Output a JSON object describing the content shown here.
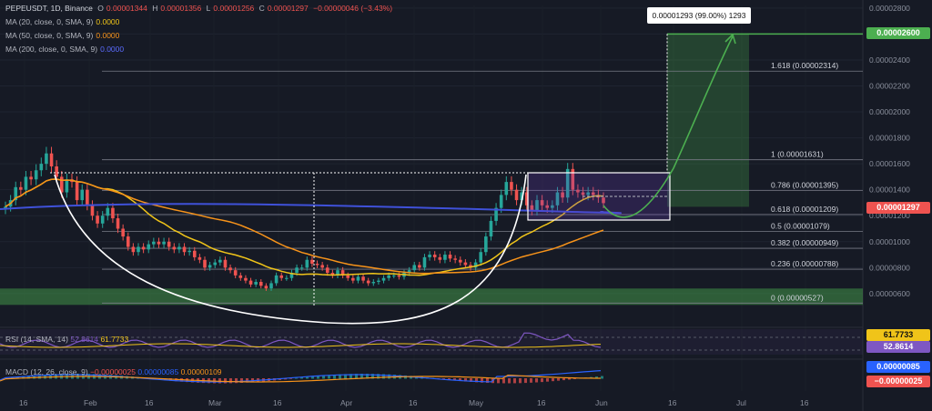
{
  "header": {
    "symbol": "PEPEUSDT, 1D, Binance",
    "open_label": "O",
    "open": "0.00001344",
    "high_label": "H",
    "high": "0.00001356",
    "low_label": "L",
    "low": "0.00001256",
    "close_label": "C",
    "close": "0.00001297",
    "change": "−0.00000046 (−3.43%)",
    "ma_lines": [
      {
        "label": "MA (20, close, 0, SMA, 9)",
        "value": "0.0000",
        "color": "#f0c419"
      },
      {
        "label": "MA (50, close, 0, SMA, 9)",
        "value": "0.0000",
        "color": "#f7931a"
      },
      {
        "label": "MA (200, close, 0, SMA, 9)",
        "value": "0.0000",
        "color": "#3f51d9"
      }
    ]
  },
  "tooltip": "0.00001293 (99.00%) 1293",
  "price_tags": {
    "target": "0.00002600",
    "last": "0.00001297",
    "rsi": "61.7733",
    "rsi_ma": "52.8614",
    "macd_a": "0.00000085",
    "macd_b": "−0.00000025"
  },
  "rsi_header": {
    "label": "RSI (14, SMA, 14)",
    "v1": "52.8614",
    "v2": "61.7733"
  },
  "macd_header": {
    "label": "MACD (12, 26, close, 9)",
    "v1": "−0.00000025",
    "v2": "0.00000085",
    "v3": "0.00000109"
  },
  "colors": {
    "up": "#26a69a",
    "down": "#ef5350",
    "ma20": "#f0c419",
    "ma50": "#f7931a",
    "ma200": "#3f51d9",
    "target": "#4caf50",
    "rsi": "#7e57c2"
  },
  "chart_data": {
    "type": "candlestick",
    "symbol": "PEPEUSDT",
    "timeframe": "1D",
    "y_axis": {
      "ylim": [
        4.8e-06,
        2.82e-05
      ],
      "ticks": [
        "0.00002800",
        "0.00002600",
        "0.00002400",
        "0.00002200",
        "0.00002000",
        "0.00001800",
        "0.00001600",
        "0.00001400",
        "0.00001200",
        "0.00001000",
        "0.00000800",
        "0.00000600"
      ]
    },
    "x_axis": {
      "labels": [
        "16",
        "Feb",
        "16",
        "Mar",
        "16",
        "Apr",
        "16",
        "May",
        "16",
        "Jun",
        "16",
        "Jul",
        "16"
      ]
    },
    "fib_levels": [
      {
        "label": "0 (0.00000527)",
        "value": 5.27e-06
      },
      {
        "label": "0.236 (0.00000788)",
        "value": 7.88e-06
      },
      {
        "label": "0.382 (0.00000949)",
        "value": 9.49e-06
      },
      {
        "label": "0.5 (0.00001079)",
        "value": 1.079e-05
      },
      {
        "label": "0.618 (0.00001209)",
        "value": 1.209e-05
      },
      {
        "label": "0.786 (0.00001395)",
        "value": 1.395e-05
      },
      {
        "label": "1 (0.00001631)",
        "value": 1.631e-05
      },
      {
        "label": "1.618 (0.00002314)",
        "value": 2.314e-05
      }
    ],
    "target_price": 2.6e-05,
    "last_price": 1.297e-05,
    "candles_close": [
      1.27e-05,
      1.32e-05,
      1.42e-05,
      1.4e-05,
      1.5e-05,
      1.48e-05,
      1.55e-05,
      1.6e-05,
      1.68e-05,
      1.58e-05,
      1.5e-05,
      1.38e-05,
      1.48e-05,
      1.46e-05,
      1.32e-05,
      1.4e-05,
      1.28e-05,
      1.2e-05,
      1.14e-05,
      1.2e-05,
      1.26e-05,
      1.18e-05,
      1.1e-05,
      1.04e-05,
      9.6e-06,
      9.2e-06,
      9.6e-06,
      9.4e-06,
      9.8e-06,
      1e-05,
      9.8e-06,
      1e-05,
      9.6e-06,
      9.4e-06,
      9.6e-06,
      9.2e-06,
      9.3e-06,
      8.8e-06,
      8.6e-06,
      8e-06,
      8.2e-06,
      8.4e-06,
      8.6e-06,
      8e-06,
      7.8e-06,
      7.4e-06,
      7.2e-06,
      7e-06,
      6.7e-06,
      6.9e-06,
      6.6e-06,
      6.4e-06,
      6.8e-06,
      7.4e-06,
      7.2e-06,
      7.2e-06,
      7.6e-06,
      8e-06,
      8e-06,
      8.6e-06,
      8.3e-06,
      8.2e-06,
      8e-06,
      7.6e-06,
      7.4e-06,
      7.8e-06,
      7.4e-06,
      7.2e-06,
      7e-06,
      7.3e-06,
      7e-06,
      6.8e-06,
      6.9e-06,
      7e-06,
      7.2e-06,
      7.4e-06,
      7.4e-06,
      7.3e-06,
      7.6e-06,
      7.8e-06,
      8.2e-06,
      8e-06,
      8.8e-06,
      9e-06,
      8.8e-06,
      8.6e-06,
      9e-06,
      8.7e-06,
      8.6e-06,
      8.4e-06,
      8.2e-06,
      8e-06,
      8.4e-06,
      9.2e-06,
      1.04e-05,
      1.16e-05,
      1.26e-05,
      1.36e-05,
      1.46e-05,
      1.4e-05,
      1.32e-05,
      1.38e-05,
      1.28e-05,
      1.24e-05,
      1.32e-05,
      1.28e-05,
      1.26e-05,
      1.28e-05,
      1.38e-05,
      1.34e-05,
      1.56e-05,
      1.4e-05,
      1.38e-05,
      1.36e-05,
      1.38e-05,
      1.36e-05,
      1.34e-05,
      1.297e-05
    ]
  }
}
